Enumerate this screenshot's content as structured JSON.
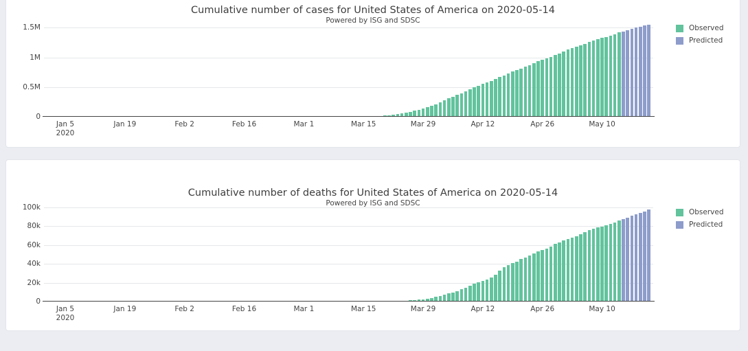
{
  "page_bg": "#ebedf2",
  "colors": {
    "observed": "#62c39d",
    "predicted": "#8d9cca",
    "axis": "#444444",
    "grid": "#e5e7e9"
  },
  "chart_data": [
    {
      "type": "bar",
      "title": "Cumulative number of cases for United States of America on 2020-05-14",
      "subtitle": "Powered by ISG and SDSC",
      "legend_position": "right",
      "legend": [
        {
          "label": "Observed",
          "color": "#62c39d"
        },
        {
          "label": "Predicted",
          "color": "#8d9cca"
        }
      ],
      "ylim": [
        0,
        1620000
      ],
      "x_domain": [
        "2019-12-31",
        "2020-05-22"
      ],
      "y_ticks": [
        {
          "value": 0,
          "label": "0"
        },
        {
          "value": 500000,
          "label": "0.5M"
        },
        {
          "value": 1000000,
          "label": "1M"
        },
        {
          "value": 1500000,
          "label": "1.5M"
        }
      ],
      "x_ticks": [
        {
          "date": "2020-01-05",
          "label": "Jan 5",
          "sublabel": "2020"
        },
        {
          "date": "2020-01-19",
          "label": "Jan 19"
        },
        {
          "date": "2020-02-02",
          "label": "Feb 2"
        },
        {
          "date": "2020-02-16",
          "label": "Feb 16"
        },
        {
          "date": "2020-03-01",
          "label": "Mar 1"
        },
        {
          "date": "2020-03-15",
          "label": "Mar 15"
        },
        {
          "date": "2020-03-29",
          "label": "Mar 29"
        },
        {
          "date": "2020-04-12",
          "label": "Apr 12"
        },
        {
          "date": "2020-04-26",
          "label": "Apr 26"
        },
        {
          "date": "2020-05-10",
          "label": "May 10"
        }
      ],
      "series": [
        {
          "name": "Observed",
          "color": "#62c39d",
          "start_date": "2020-01-22",
          "values": [
            1,
            1,
            2,
            2,
            5,
            5,
            5,
            5,
            6,
            7,
            8,
            8,
            11,
            11,
            11,
            11,
            11,
            11,
            11,
            11,
            12,
            12,
            13,
            13,
            13,
            13,
            13,
            13,
            13,
            13,
            15,
            15,
            15,
            51,
            51,
            57,
            58,
            60,
            68,
            74,
            98,
            118,
            149,
            217,
            262,
            402,
            518,
            583,
            959,
            1281,
            1663,
            2179,
            2727,
            3499,
            4632,
            6421,
            7783,
            13747,
            19100,
            25489,
            33276,
            43847,
            53740,
            65778,
            83836,
            101657,
            121478,
            140886,
            161807,
            188172,
            213372,
            243453,
            275586,
            308850,
            337072,
            366667,
            396223,
            429052,
            461437,
            496535,
            526396,
            555313,
            580619,
            607670,
            636350,
            667592,
            699706,
            732197,
            759086,
            784326,
            811865,
            840351,
            869170,
            905358,
            938154,
            965785,
            988197,
            1012582,
            1039909,
            1069424,
            1103461,
            1132539,
            1158040,
            1180375,
            1204351,
            1229331,
            1257023,
            1283929,
            1309541,
            1329260,
            1347881,
            1369574,
            1390406,
            1417774
          ]
        },
        {
          "name": "Predicted",
          "color": "#8d9cca",
          "start_date": "2020-05-15",
          "values": [
            1438000,
            1459000,
            1479000,
            1499000,
            1518000,
            1536000,
            1553000
          ]
        }
      ]
    },
    {
      "type": "bar",
      "title": "Cumulative number of deaths for United States of America on 2020-05-14",
      "subtitle": "Powered by ISG and SDSC",
      "legend_position": "right",
      "legend": [
        {
          "label": "Observed",
          "color": "#62c39d"
        },
        {
          "label": "Predicted",
          "color": "#8d9cca"
        }
      ],
      "ylim": [
        0,
        102000
      ],
      "x_domain": [
        "2019-12-31",
        "2020-05-22"
      ],
      "y_ticks": [
        {
          "value": 0,
          "label": "0"
        },
        {
          "value": 20000,
          "label": "20k"
        },
        {
          "value": 40000,
          "label": "40k"
        },
        {
          "value": 60000,
          "label": "60k"
        },
        {
          "value": 80000,
          "label": "80k"
        },
        {
          "value": 100000,
          "label": "100k"
        }
      ],
      "x_ticks": [
        {
          "date": "2020-01-05",
          "label": "Jan 5",
          "sublabel": "2020"
        },
        {
          "date": "2020-01-19",
          "label": "Jan 19"
        },
        {
          "date": "2020-02-02",
          "label": "Feb 2"
        },
        {
          "date": "2020-02-16",
          "label": "Feb 16"
        },
        {
          "date": "2020-03-01",
          "label": "Mar 1"
        },
        {
          "date": "2020-03-15",
          "label": "Mar 15"
        },
        {
          "date": "2020-03-29",
          "label": "Mar 29"
        },
        {
          "date": "2020-04-12",
          "label": "Apr 12"
        },
        {
          "date": "2020-04-26",
          "label": "Apr 26"
        },
        {
          "date": "2020-05-10",
          "label": "May 10"
        }
      ],
      "series": [
        {
          "name": "Observed",
          "color": "#62c39d",
          "start_date": "2020-01-22",
          "values": [
            0,
            0,
            0,
            0,
            0,
            0,
            0,
            0,
            0,
            0,
            0,
            0,
            0,
            0,
            0,
            0,
            0,
            0,
            0,
            0,
            0,
            0,
            0,
            0,
            0,
            0,
            0,
            0,
            0,
            0,
            0,
            0,
            0,
            0,
            0,
            0,
            0,
            0,
            1,
            1,
            6,
            7,
            11,
            12,
            14,
            17,
            21,
            22,
            28,
            36,
            40,
            47,
            54,
            63,
            85,
            108,
            118,
            200,
            244,
            307,
            417,
            557,
            706,
            942,
            1209,
            1581,
            2026,
            2467,
            2978,
            3873,
            4757,
            5926,
            7087,
            8407,
            9619,
            10783,
            12798,
            14704,
            16553,
            18595,
            20471,
            22032,
            23529,
            25832,
            28326,
            32917,
            36773,
            38664,
            40665,
            42518,
            45087,
            46859,
            49003,
            51017,
            53034,
            54881,
            56245,
            58355,
            60853,
            62996,
            64943,
            66369,
            67682,
            68922,
            71064,
            73455,
            75662,
            77180,
            78795,
            79526,
            80682,
            82387,
            84136,
            85898
          ]
        },
        {
          "name": "Predicted",
          "color": "#8d9cca",
          "start_date": "2020-05-15",
          "values": [
            87500,
            89200,
            90800,
            92400,
            94000,
            95700,
            97800
          ]
        }
      ]
    }
  ]
}
